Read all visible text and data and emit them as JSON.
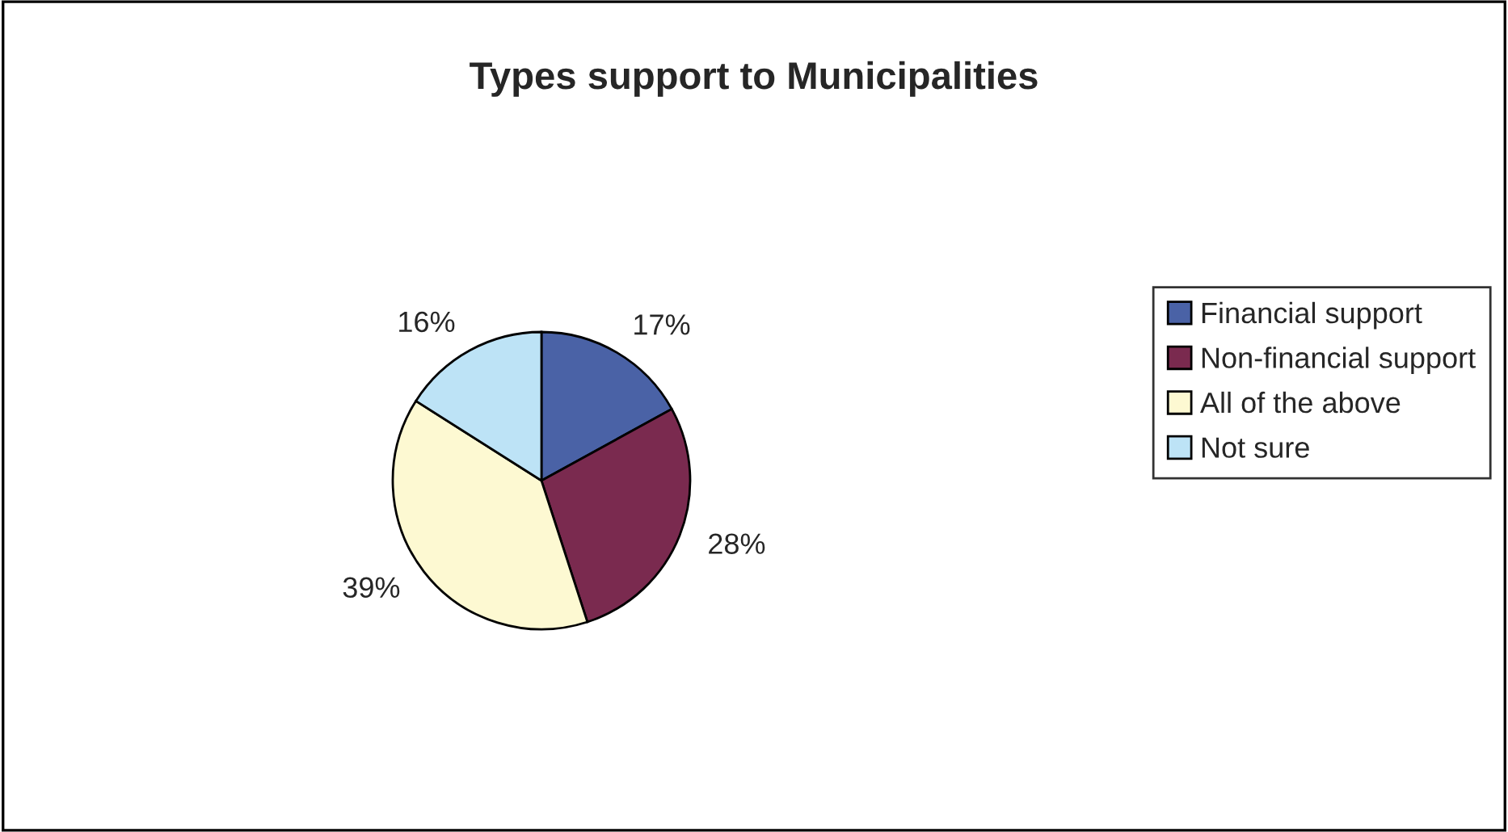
{
  "chart_data": {
    "type": "pie",
    "title": "Types support to Municipalities",
    "categories": [
      "Financial support",
      "Non-financial support",
      "All of the above",
      "Not sure"
    ],
    "values": [
      17,
      28,
      39,
      16
    ],
    "colors": [
      "#4a62a6",
      "#7a2a4f",
      "#fdf9d2",
      "#bde3f6"
    ],
    "value_labels": [
      "17%",
      "28%",
      "39%",
      "16%"
    ],
    "legend": "right"
  }
}
